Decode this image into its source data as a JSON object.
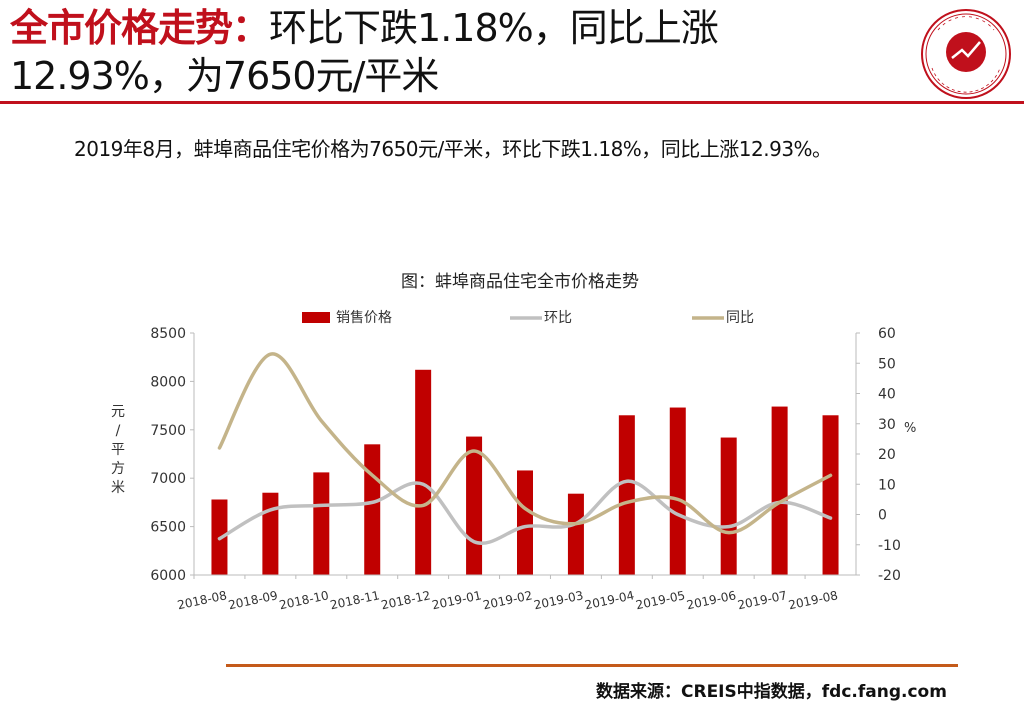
{
  "header": {
    "title_highlight": "全市价格走势：",
    "title_line1": "环比下跌1.18%，同比上涨",
    "title_line2": "12.93%，为7650元/平米",
    "accent_color": "#c0101c",
    "logo_icon": "china-index-academy-seal-icon"
  },
  "summary": "2019年8月，蚌埠商品住宅价格为7650元/平米，环比下跌1.18%，同比上涨12.93%。",
  "chart_data": {
    "type": "bar",
    "title": "图：蚌埠商品住宅全市价格走势",
    "categories": [
      "2018-08",
      "2018-09",
      "2018-10",
      "2018-11",
      "2018-12",
      "2019-01",
      "2019-02",
      "2019-03",
      "2019-04",
      "2019-05",
      "2019-06",
      "2019-07",
      "2019-08"
    ],
    "series": [
      {
        "name": "销售价格",
        "type": "bar",
        "axis": "left",
        "color": "#c00000",
        "values": [
          6780,
          6850,
          7060,
          7350,
          8120,
          7430,
          7080,
          6840,
          7650,
          7730,
          7420,
          7740,
          7650
        ]
      },
      {
        "name": "环比",
        "type": "line",
        "axis": "right",
        "color": "#c0c0c0",
        "values": [
          -8,
          1.5,
          3,
          4,
          10,
          -9,
          -4,
          -3,
          11,
          0,
          -4,
          4,
          -1.18
        ]
      },
      {
        "name": "同比",
        "type": "line",
        "axis": "right",
        "color": "#c4b48a",
        "values": [
          22,
          53,
          31,
          13,
          3,
          21,
          2,
          -3,
          4,
          5,
          -6,
          4,
          12.93
        ]
      }
    ],
    "ylabel_left": "元/平方米",
    "ylabel_right": "%",
    "ylim_left": [
      6000,
      8500
    ],
    "yticks_left": [
      6000,
      6500,
      7000,
      7500,
      8000,
      8500
    ],
    "ylim_right": [
      -20,
      60
    ],
    "yticks_right": [
      -20,
      -10,
      0,
      10,
      20,
      30,
      40,
      50,
      60
    ],
    "legend_position": "top",
    "grid": false
  },
  "footer": {
    "source": "数据来源：CREIS中指数据，fdc.fang.com",
    "rule_color": "#c45a1a"
  }
}
